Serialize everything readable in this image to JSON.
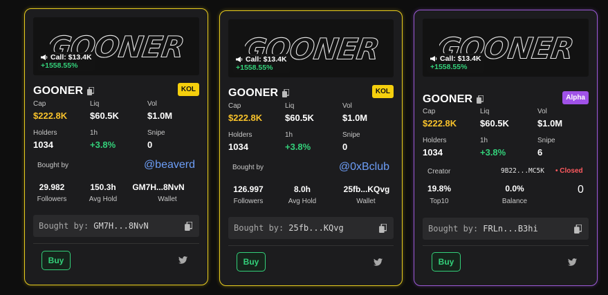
{
  "cards": [
    {
      "call_label": "Call: $13.4K",
      "call_pct": "+1558.55%",
      "name": "GOONER",
      "badge": "KOL",
      "stats": {
        "cap_label": "Cap",
        "cap": "$222.8K",
        "liq_label": "Liq",
        "liq": "$60.5K",
        "vol_label": "Vol",
        "vol": "$1.0M",
        "holders_label": "Holders",
        "holders": "1034",
        "h1_label": "1h",
        "h1": "+3.8%",
        "snipe_label": "Snipe",
        "snipe": "0"
      },
      "bought_by_label": "Bought by",
      "handle": "@beaverd",
      "followers": "29.982",
      "followers_label": "Followers",
      "avg_hold": "150.3h",
      "avg_hold_label": "Avg Hold",
      "wallet": "GM7H...8NvN",
      "wallet_label": "Wallet",
      "addr_prefix": "Bought by:",
      "addr": "GM7H...8NvN",
      "buy_label": "Buy"
    },
    {
      "call_label": "Call: $13.4K",
      "call_pct": "+1558.55%",
      "name": "GOONER",
      "badge": "KOL",
      "stats": {
        "cap_label": "Cap",
        "cap": "$222.8K",
        "liq_label": "Liq",
        "liq": "$60.5K",
        "vol_label": "Vol",
        "vol": "$1.0M",
        "holders_label": "Holders",
        "holders": "1034",
        "h1_label": "1h",
        "h1": "+3.8%",
        "snipe_label": "Snipe",
        "snipe": "0"
      },
      "bought_by_label": "Bought by",
      "handle": "@0xBclub",
      "followers": "126.997",
      "followers_label": "Followers",
      "avg_hold": "8.0h",
      "avg_hold_label": "Avg Hold",
      "wallet": "25fb...KQvg",
      "wallet_label": "Wallet",
      "addr_prefix": "Bought by:",
      "addr": "25fb...KQvg",
      "buy_label": "Buy"
    },
    {
      "call_label": "Call: $13.4K",
      "call_pct": "+1558.55%",
      "name": "GOONER",
      "badge": "Alpha",
      "stats": {
        "cap_label": "Cap",
        "cap": "$222.8K",
        "liq_label": "Liq",
        "liq": "$60.5K",
        "vol_label": "Vol",
        "vol": "$1.0M",
        "holders_label": "Holders",
        "holders": "1034",
        "h1_label": "1h",
        "h1": "+3.8%",
        "snipe_label": "Snipe",
        "snipe": "6"
      },
      "creator_label": "Creator",
      "creator_addr": "9B22...MC5K",
      "closed_label": "• Closed",
      "top10": "19.8%",
      "top10_label": "Top10",
      "balance": "0.0%",
      "balance_label": "Balance",
      "zero": "0",
      "addr_prefix": "Bought by:",
      "addr": "FRLn...B3hi",
      "buy_label": "Buy"
    }
  ],
  "colors": {
    "kol_border": "#e8cc1e",
    "alpha_border": "#9c5ad6",
    "green": "#33d17a",
    "yellow": "#f8c22b",
    "link": "#6d9ef7"
  },
  "icons": [
    "megaphone-icon",
    "copy-icon",
    "twitter-icon"
  ]
}
